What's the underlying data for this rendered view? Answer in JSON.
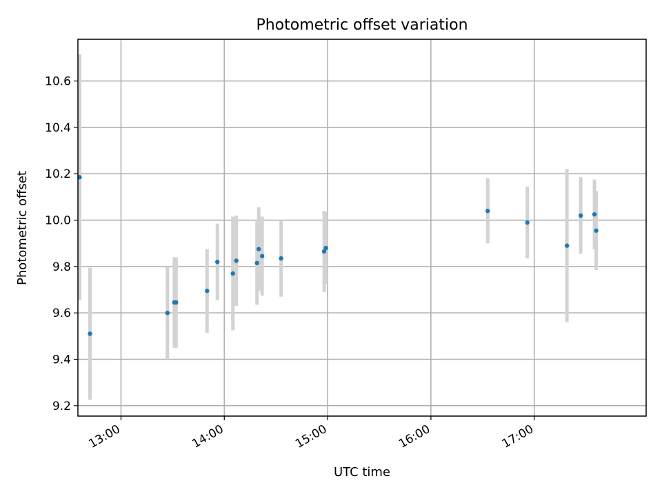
{
  "chart_data": {
    "type": "scatter",
    "title": "Photometric offset variation",
    "xlabel": "UTC time",
    "ylabel": "Photometric offset",
    "x_unit": "UTC time (HH:MM)",
    "xlim": [
      "12:35",
      "18:05"
    ],
    "ylim": [
      9.155,
      10.78
    ],
    "x_ticks": [
      {
        "value": "13:00",
        "label": "13:00"
      },
      {
        "value": "14:00",
        "label": "14:00"
      },
      {
        "value": "15:00",
        "label": "15:00"
      },
      {
        "value": "16:00",
        "label": "16:00"
      },
      {
        "value": "17:00",
        "label": "17:00"
      }
    ],
    "y_ticks": [
      {
        "value": 9.2,
        "label": "9.2"
      },
      {
        "value": 9.4,
        "label": "9.4"
      },
      {
        "value": 9.6,
        "label": "9.6"
      },
      {
        "value": 9.8,
        "label": "9.8"
      },
      {
        "value": 10.0,
        "label": "10.0"
      },
      {
        "value": 10.2,
        "label": "10.2"
      },
      {
        "value": 10.4,
        "label": "10.4"
      },
      {
        "value": 10.6,
        "label": "10.6"
      }
    ],
    "grid": true,
    "x_tick_rotation": 30,
    "point_color": "#1f77b4",
    "errorbar_color": "#d3d3d3",
    "points": [
      {
        "x": "12:36",
        "y": 10.185,
        "err": 0.53
      },
      {
        "x": "12:42",
        "y": 9.51,
        "err": 0.285
      },
      {
        "x": "13:27",
        "y": 9.6,
        "err": 0.2
      },
      {
        "x": "13:31",
        "y": 9.645,
        "err": 0.195
      },
      {
        "x": "13:32",
        "y": 9.645,
        "err": 0.195
      },
      {
        "x": "13:50",
        "y": 9.695,
        "err": 0.18
      },
      {
        "x": "13:56",
        "y": 9.82,
        "err": 0.165
      },
      {
        "x": "14:05",
        "y": 9.77,
        "err": 0.245
      },
      {
        "x": "14:07",
        "y": 9.825,
        "err": 0.195
      },
      {
        "x": "14:19",
        "y": 9.815,
        "err": 0.18
      },
      {
        "x": "14:20",
        "y": 9.875,
        "err": 0.18
      },
      {
        "x": "14:22",
        "y": 9.845,
        "err": 0.17
      },
      {
        "x": "14:33",
        "y": 9.835,
        "err": 0.165
      },
      {
        "x": "14:58",
        "y": 9.865,
        "err": 0.175
      },
      {
        "x": "14:59",
        "y": 9.88,
        "err": 0.155
      },
      {
        "x": "16:33",
        "y": 10.04,
        "err": 0.14
      },
      {
        "x": "16:56",
        "y": 9.99,
        "err": 0.155
      },
      {
        "x": "17:19",
        "y": 9.89,
        "err": 0.33
      },
      {
        "x": "17:27",
        "y": 10.02,
        "err": 0.165
      },
      {
        "x": "17:35",
        "y": 10.025,
        "err": 0.15
      },
      {
        "x": "17:36",
        "y": 9.955,
        "err": 0.17
      }
    ]
  }
}
